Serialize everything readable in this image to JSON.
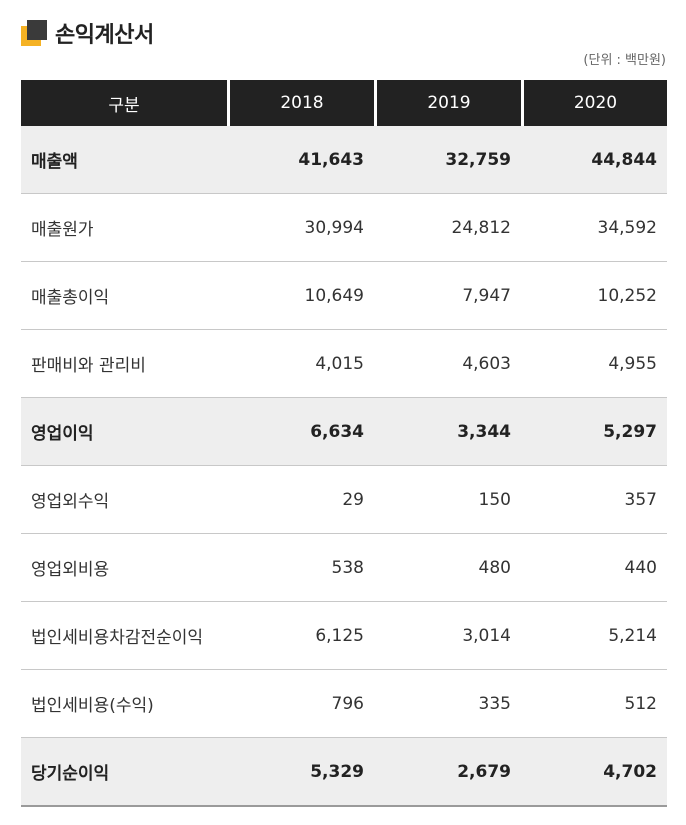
{
  "title": "손익계산서",
  "unit_note": "(단위 : 백만원)",
  "table": {
    "headers": [
      "구분",
      "2018",
      "2019",
      "2020"
    ],
    "rows": [
      {
        "label": "매출액",
        "values": [
          "41,643",
          "32,759",
          "44,844"
        ],
        "highlight": true
      },
      {
        "label": "매출원가",
        "values": [
          "30,994",
          "24,812",
          "34,592"
        ],
        "highlight": false
      },
      {
        "label": "매출총이익",
        "values": [
          "10,649",
          "7,947",
          "10,252"
        ],
        "highlight": false
      },
      {
        "label": "판매비와 관리비",
        "values": [
          "4,015",
          "4,603",
          "4,955"
        ],
        "highlight": false
      },
      {
        "label": "영업이익",
        "values": [
          "6,634",
          "3,344",
          "5,297"
        ],
        "highlight": true
      },
      {
        "label": "영업외수익",
        "values": [
          "29",
          "150",
          "357"
        ],
        "highlight": false
      },
      {
        "label": "영업외비용",
        "values": [
          "538",
          "480",
          "440"
        ],
        "highlight": false
      },
      {
        "label": "법인세비용차감전순이익",
        "values": [
          "6,125",
          "3,014",
          "5,214"
        ],
        "highlight": false
      },
      {
        "label": "법인세비용(수익)",
        "values": [
          "796",
          "335",
          "512"
        ],
        "highlight": false
      },
      {
        "label": "당기순이익",
        "values": [
          "5,329",
          "2,679",
          "4,702"
        ],
        "highlight": true
      }
    ]
  },
  "colors": {
    "header_bg": "#222222",
    "highlight_bg": "#eeeeee",
    "icon_accent": "#f5b224",
    "icon_dark": "#3a3a3a"
  }
}
